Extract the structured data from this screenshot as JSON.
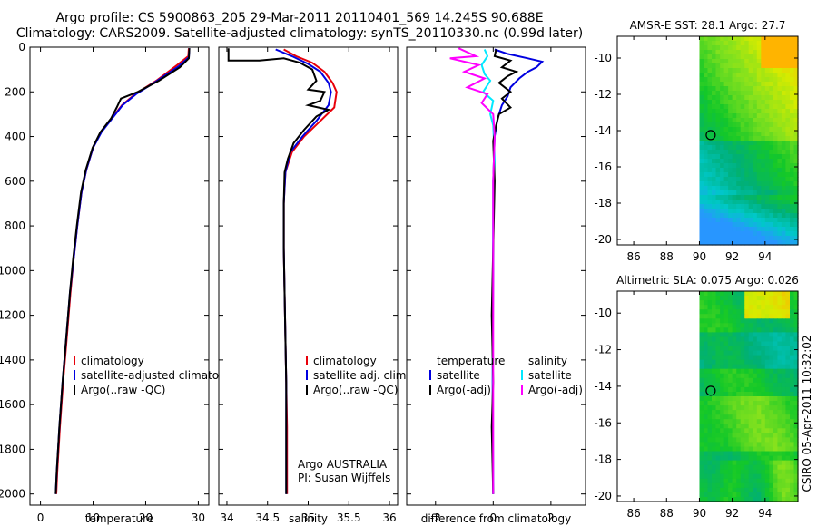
{
  "header": {
    "line1": "Argo profile: CS 5900863_205 29-Mar-2011 20110401_569 14.245S 90.688E",
    "line2": "Climatology: CARS2009. Satellite-adjusted climatology: synTS_20110330.nc (0.99d later)"
  },
  "side_label": "CSIRO 05-Apr-2011 10:32:02",
  "colors": {
    "red": "#e8000a",
    "blue": "#0000e0",
    "black": "#000000",
    "cyan": "#00e8ff",
    "magenta": "#ff00ff"
  },
  "chart_data": [
    {
      "type": "line",
      "name": "temperature-profile",
      "xlabel": "temperature",
      "xlim": [
        -2,
        32
      ],
      "ylim": [
        2050,
        0
      ],
      "xticks": [
        0,
        10,
        20,
        30
      ],
      "yticks": [
        0,
        200,
        400,
        600,
        800,
        1000,
        1200,
        1400,
        1600,
        1800,
        2000
      ],
      "legend": [
        "climatology",
        "satellite-adjusted climatology",
        "Argo(..raw -QC)"
      ],
      "series": [
        {
          "name": "climatology",
          "color": "red",
          "points": [
            [
              28.2,
              5
            ],
            [
              28.1,
              40
            ],
            [
              26,
              80
            ],
            [
              22,
              150
            ],
            [
              18,
              210
            ],
            [
              15.5,
              260
            ],
            [
              13.5,
              320
            ],
            [
              11.5,
              380
            ],
            [
              10,
              450
            ],
            [
              8.7,
              550
            ],
            [
              7.8,
              650
            ],
            [
              7,
              800
            ],
            [
              6.3,
              950
            ],
            [
              5.7,
              1100
            ],
            [
              5,
              1300
            ],
            [
              4.3,
              1500
            ],
            [
              3.7,
              1700
            ],
            [
              3.2,
              1900
            ],
            [
              3,
              2000
            ]
          ]
        },
        {
          "name": "satellite-adjusted",
          "color": "blue",
          "points": [
            [
              28.3,
              5
            ],
            [
              28.2,
              45
            ],
            [
              26.3,
              85
            ],
            [
              22.2,
              150
            ],
            [
              18.2,
              210
            ],
            [
              15.6,
              260
            ],
            [
              13.6,
              320
            ],
            [
              11.6,
              380
            ],
            [
              10,
              450
            ],
            [
              8.7,
              550
            ],
            [
              7.8,
              650
            ],
            [
              7,
              800
            ],
            [
              6.3,
              950
            ],
            [
              5.6,
              1100
            ],
            [
              4.9,
              1300
            ],
            [
              4.2,
              1500
            ],
            [
              3.6,
              1700
            ],
            [
              3.1,
              1900
            ],
            [
              2.9,
              2000
            ]
          ]
        },
        {
          "name": "argo",
          "color": "black",
          "points": [
            [
              28.3,
              5
            ],
            [
              28.2,
              50
            ],
            [
              26.5,
              90
            ],
            [
              22.5,
              150
            ],
            [
              18.5,
              200
            ],
            [
              15.3,
              230
            ],
            [
              14.5,
              270
            ],
            [
              13.4,
              320
            ],
            [
              11.4,
              380
            ],
            [
              9.9,
              450
            ],
            [
              8.6,
              550
            ],
            [
              7.7,
              650
            ],
            [
              6.9,
              800
            ],
            [
              6.2,
              950
            ],
            [
              5.6,
              1100
            ],
            [
              4.9,
              1300
            ],
            [
              4.2,
              1500
            ],
            [
              3.6,
              1700
            ],
            [
              3.1,
              1900
            ],
            [
              2.9,
              2000
            ]
          ]
        }
      ]
    },
    {
      "type": "line",
      "name": "salinity-profile",
      "xlabel": "salinity",
      "xlim": [
        33.9,
        36.1
      ],
      "ylim": [
        2050,
        0
      ],
      "xticks": [
        34,
        34.5,
        35,
        35.5,
        36
      ],
      "xticklabels": [
        "34",
        "34.5",
        "35",
        "35.5",
        "36"
      ],
      "legend": [
        "climatology",
        "satellite adj. clim.",
        "Argo(..raw -QC)"
      ],
      "annotation": [
        "Argo AUSTRALIA",
        "PI: Susan Wijffels"
      ],
      "series": [
        {
          "name": "climatology",
          "color": "red",
          "points": [
            [
              34.7,
              10
            ],
            [
              34.85,
              40
            ],
            [
              35.05,
              70
            ],
            [
              35.2,
              110
            ],
            [
              35.3,
              160
            ],
            [
              35.35,
              200
            ],
            [
              35.32,
              270
            ],
            [
              35.15,
              330
            ],
            [
              34.95,
              400
            ],
            [
              34.8,
              470
            ],
            [
              34.72,
              560
            ],
            [
              34.7,
              700
            ],
            [
              34.7,
              900
            ],
            [
              34.71,
              1100
            ],
            [
              34.72,
              1300
            ],
            [
              34.73,
              1500
            ],
            [
              34.74,
              1700
            ],
            [
              34.74,
              1900
            ],
            [
              34.74,
              2000
            ]
          ]
        },
        {
          "name": "satellite-adjusted",
          "color": "blue",
          "points": [
            [
              34.6,
              10
            ],
            [
              34.8,
              40
            ],
            [
              35,
              75
            ],
            [
              35.15,
              110
            ],
            [
              35.25,
              160
            ],
            [
              35.28,
              200
            ],
            [
              35.25,
              260
            ],
            [
              35.1,
              330
            ],
            [
              34.93,
              400
            ],
            [
              34.78,
              470
            ],
            [
              34.72,
              560
            ],
            [
              34.7,
              700
            ],
            [
              34.7,
              900
            ],
            [
              34.71,
              1100
            ],
            [
              34.72,
              1300
            ],
            [
              34.73,
              1500
            ],
            [
              34.73,
              1700
            ],
            [
              34.73,
              1900
            ],
            [
              34.73,
              2000
            ]
          ]
        },
        {
          "name": "argo",
          "color": "black",
          "points": [
            [
              34.02,
              5
            ],
            [
              34.02,
              60
            ],
            [
              34.4,
              60
            ],
            [
              34.7,
              50
            ],
            [
              34.9,
              70
            ],
            [
              35.05,
              100
            ],
            [
              35.1,
              150
            ],
            [
              35.0,
              190
            ],
            [
              35.2,
              200
            ],
            [
              35.15,
              240
            ],
            [
              35.0,
              260
            ],
            [
              35.25,
              280
            ],
            [
              35.1,
              310
            ],
            [
              34.95,
              370
            ],
            [
              34.82,
              430
            ],
            [
              34.75,
              500
            ],
            [
              34.71,
              560
            ],
            [
              34.7,
              700
            ],
            [
              34.7,
              900
            ],
            [
              34.71,
              1100
            ],
            [
              34.72,
              1300
            ],
            [
              34.73,
              1500
            ],
            [
              34.73,
              1700
            ],
            [
              34.73,
              1900
            ],
            [
              34.73,
              2000
            ]
          ]
        }
      ]
    },
    {
      "type": "line",
      "name": "difference-profile",
      "xlabel": "difference from climatology",
      "xlim": [
        -3,
        3.2
      ],
      "ylim": [
        2050,
        0
      ],
      "xticks": [
        -2,
        0,
        2
      ],
      "legend_temperature": {
        "title": "temperature",
        "items": [
          "satellite",
          "Argo(-adj)"
        ]
      },
      "legend_salinity": {
        "title": "salinity",
        "items": [
          "satellite",
          "Argo(-adj)"
        ]
      },
      "series": [
        {
          "name": "temperature-satellite",
          "color": "blue",
          "points": [
            [
              0.05,
              10
            ],
            [
              0.5,
              30
            ],
            [
              1.2,
              50
            ],
            [
              1.7,
              65
            ],
            [
              1.5,
              90
            ],
            [
              1.2,
              110
            ],
            [
              0.9,
              140
            ],
            [
              0.6,
              180
            ],
            [
              0.5,
              220
            ],
            [
              0.3,
              260
            ],
            [
              0.15,
              320
            ],
            [
              0.05,
              400
            ],
            [
              0,
              600
            ],
            [
              0,
              1000
            ],
            [
              -0.02,
              1500
            ],
            [
              0,
              2000
            ]
          ]
        },
        {
          "name": "salinity-satellite",
          "color": "cyan",
          "points": [
            [
              -0.3,
              10
            ],
            [
              -0.2,
              40
            ],
            [
              -0.4,
              80
            ],
            [
              -0.3,
              120
            ],
            [
              -0.1,
              150
            ],
            [
              -0.35,
              200
            ],
            [
              0,
              240
            ],
            [
              -0.1,
              300
            ],
            [
              0,
              350
            ],
            [
              0.05,
              500
            ],
            [
              0,
              800
            ],
            [
              -0.02,
              1200
            ],
            [
              0,
              2000
            ]
          ]
        },
        {
          "name": "temperature-argo",
          "color": "black",
          "points": [
            [
              0.1,
              10
            ],
            [
              0.05,
              40
            ],
            [
              0.6,
              60
            ],
            [
              0.3,
              90
            ],
            [
              0.8,
              110
            ],
            [
              0.5,
              130
            ],
            [
              0.2,
              160
            ],
            [
              0.6,
              200
            ],
            [
              0.3,
              230
            ],
            [
              0.6,
              270
            ],
            [
              0.2,
              300
            ],
            [
              0.1,
              350
            ],
            [
              0,
              420
            ],
            [
              0.05,
              600
            ],
            [
              0,
              900
            ],
            [
              -0.05,
              1200
            ],
            [
              0,
              1500
            ],
            [
              -0.05,
              1700
            ],
            [
              0,
              2000
            ]
          ]
        },
        {
          "name": "salinity-argo",
          "color": "magenta",
          "points": [
            [
              -1.2,
              5
            ],
            [
              -0.6,
              40
            ],
            [
              -1.5,
              50
            ],
            [
              -0.5,
              80
            ],
            [
              -1.0,
              110
            ],
            [
              -0.3,
              140
            ],
            [
              -0.9,
              180
            ],
            [
              -0.2,
              210
            ],
            [
              -0.4,
              250
            ],
            [
              0,
              300
            ],
            [
              0.05,
              400
            ],
            [
              0,
              600
            ],
            [
              0,
              900
            ],
            [
              0,
              1200
            ],
            [
              0,
              1500
            ],
            [
              0,
              2000
            ]
          ]
        }
      ]
    },
    {
      "type": "heatmap",
      "name": "sst-map",
      "title": "AMSR-E SST: 28.1 Argo: 27.7",
      "xlim": [
        85,
        96
      ],
      "ylim": [
        -20.3,
        -8.8
      ],
      "xticks": [
        86,
        88,
        90,
        92,
        94
      ],
      "yticks": [
        -10,
        -12,
        -14,
        -16,
        -18,
        -20
      ],
      "data_extent_x": [
        90,
        96
      ],
      "marker": {
        "lon": 90.688,
        "lat": -14.245
      }
    },
    {
      "type": "heatmap",
      "name": "sla-map",
      "title": "Altimetric SLA: 0.075 Argo: 0.026",
      "xlim": [
        85,
        96
      ],
      "ylim": [
        -20.3,
        -8.8
      ],
      "xticks": [
        86,
        88,
        90,
        92,
        94
      ],
      "yticks": [
        -10,
        -12,
        -14,
        -16,
        -18,
        -20
      ],
      "data_extent_x": [
        90,
        96
      ],
      "marker": {
        "lon": 90.688,
        "lat": -14.245
      }
    }
  ]
}
